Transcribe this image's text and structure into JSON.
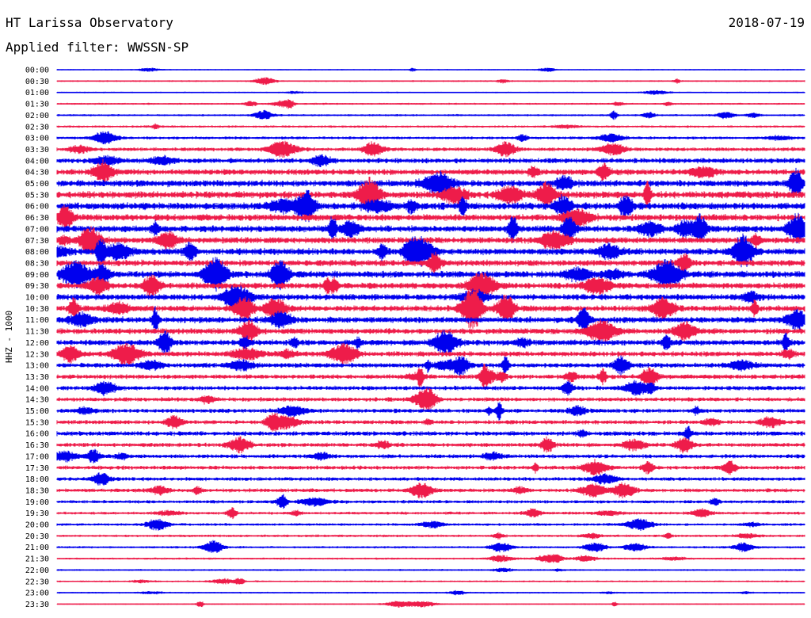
{
  "header": {
    "station": "HT Larissa Observatory",
    "date": "2018-07-19",
    "filter": "Applied filter: WWSSN-SP",
    "channel": "HHZ - 1000"
  },
  "colors": {
    "even_trace": "#0000ee",
    "odd_trace": "#ee1c4a",
    "background": "#ffffff",
    "text": "#000000"
  },
  "chart_data": {
    "type": "line",
    "title": "",
    "xlabel": "",
    "ylabel": "HHZ - 1000",
    "rows": [
      "00:00",
      "00:30",
      "01:00",
      "01:30",
      "02:00",
      "02:30",
      "03:00",
      "03:30",
      "04:00",
      "04:30",
      "05:00",
      "05:30",
      "06:00",
      "06:30",
      "07:00",
      "07:30",
      "08:00",
      "08:30",
      "09:00",
      "09:30",
      "10:00",
      "10:30",
      "11:00",
      "11:30",
      "12:00",
      "12:30",
      "13:00",
      "13:30",
      "14:00",
      "14:30",
      "15:00",
      "15:30",
      "16:00",
      "16:30",
      "17:00",
      "17:30",
      "18:00",
      "18:30",
      "19:00",
      "19:30",
      "20:00",
      "20:30",
      "21:00",
      "21:30",
      "22:00",
      "22:30",
      "23:00",
      "23:30"
    ],
    "noise_amplitude": [
      0.6,
      0.8,
      0.7,
      0.9,
      1.0,
      1.1,
      1.4,
      1.8,
      2.4,
      2.8,
      3.2,
      3.4,
      3.4,
      3.2,
      3.2,
      3.0,
      3.2,
      3.0,
      3.2,
      3.0,
      3.0,
      2.9,
      3.0,
      2.8,
      2.8,
      2.5,
      2.3,
      2.2,
      2.1,
      2.0,
      2.0,
      2.0,
      2.2,
      2.0,
      1.9,
      1.9,
      1.8,
      1.8,
      1.6,
      1.4,
      1.3,
      1.2,
      1.1,
      1.0,
      0.9,
      0.9,
      0.8,
      0.7
    ]
  }
}
